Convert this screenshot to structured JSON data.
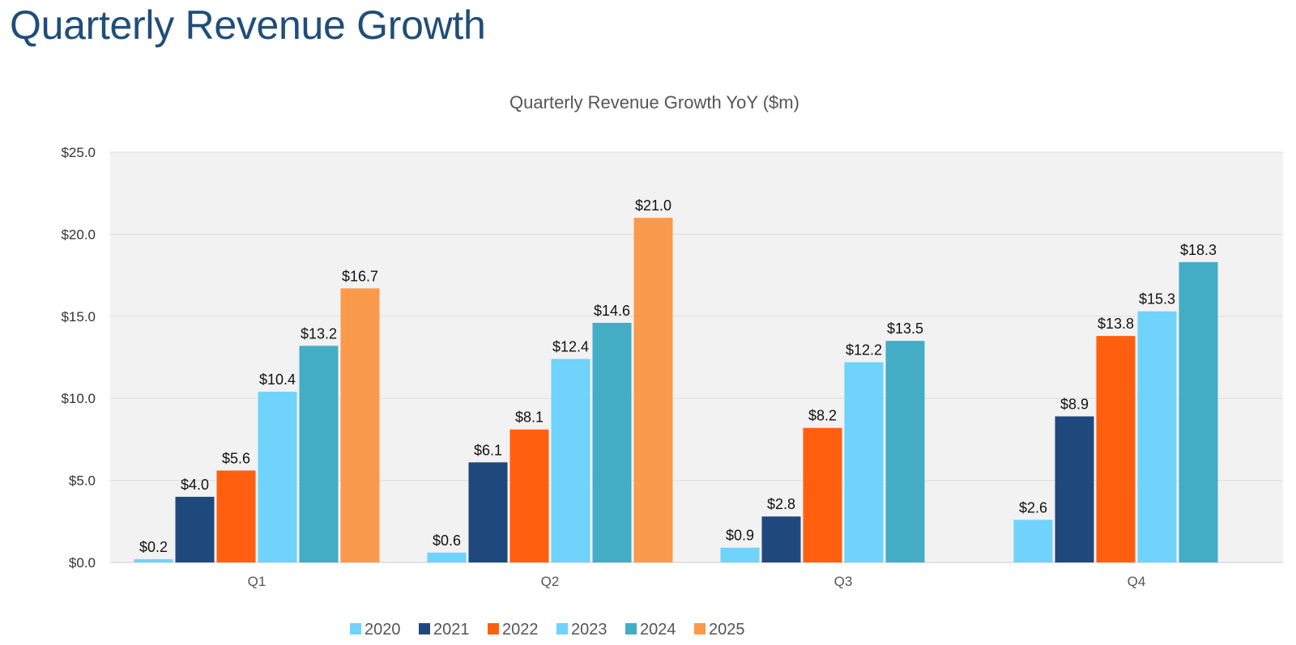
{
  "page": {
    "title": "Quarterly Revenue Growth"
  },
  "chart_data": {
    "type": "bar",
    "title": "Quarterly Revenue Growth YoY ($m)",
    "xlabel": "",
    "ylabel": "",
    "categories": [
      "Q1",
      "Q2",
      "Q3",
      "Q4"
    ],
    "ylim": [
      0,
      25
    ],
    "yticks": [
      0,
      5,
      10,
      15,
      20,
      25
    ],
    "ytick_labels": [
      "$0.0",
      "$5.0",
      "$10.0",
      "$15.0",
      "$20.0",
      "$25.0"
    ],
    "grid": true,
    "legend_position": "bottom",
    "series": [
      {
        "name": "2020",
        "color": "#6fd3fb",
        "values": [
          0.2,
          0.6,
          0.9,
          2.6
        ],
        "labels": [
          "$0.2",
          "$0.6",
          "$0.9",
          "$2.6"
        ]
      },
      {
        "name": "2021",
        "color": "#1f497d",
        "values": [
          4.0,
          6.1,
          2.8,
          8.9
        ],
        "labels": [
          "$4.0",
          "$6.1",
          "$2.8",
          "$8.9"
        ]
      },
      {
        "name": "2022",
        "color": "#ff5f0f",
        "values": [
          5.6,
          8.1,
          8.2,
          13.8
        ],
        "labels": [
          "$5.6",
          "$8.1",
          "$8.2",
          "$13.8"
        ]
      },
      {
        "name": "2023",
        "color": "#6fd3fb",
        "values": [
          10.4,
          12.4,
          12.2,
          15.3
        ],
        "labels": [
          "$10.4",
          "$12.4",
          "$12.2",
          "$15.3"
        ]
      },
      {
        "name": "2024",
        "color": "#43adc6",
        "values": [
          13.2,
          14.6,
          13.5,
          18.3
        ],
        "labels": [
          "$13.2",
          "$14.6",
          "$13.5",
          "$18.3"
        ]
      },
      {
        "name": "2025",
        "color": "#fa9a4c",
        "values": [
          16.7,
          21.0,
          null,
          null
        ],
        "labels": [
          "$16.7",
          "$21.0",
          null,
          null
        ]
      }
    ]
  }
}
